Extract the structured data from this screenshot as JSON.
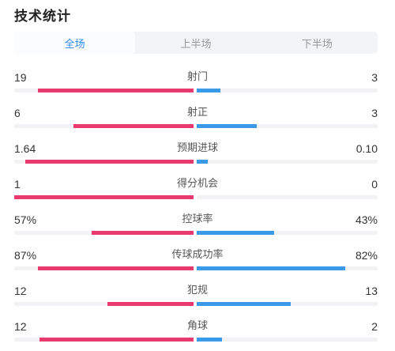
{
  "title": "技术统计",
  "tabs": [
    {
      "label": "全场",
      "active": true
    },
    {
      "label": "上半场",
      "active": false
    },
    {
      "label": "下半场",
      "active": false
    }
  ],
  "colors": {
    "home": "#e83a6e",
    "away": "#3b9ae8",
    "accent": "#2e8bf0"
  },
  "stats": [
    {
      "label": "射门",
      "home": "19",
      "away": "3",
      "home_ratio": 0.87,
      "away_ratio": 0.13
    },
    {
      "label": "射正",
      "home": "6",
      "away": "3",
      "home_ratio": 0.67,
      "away_ratio": 0.33
    },
    {
      "label": "预期进球",
      "home": "1.64",
      "away": "0.10",
      "home_ratio": 0.94,
      "away_ratio": 0.06
    },
    {
      "label": "得分机会",
      "home": "1",
      "away": "0",
      "home_ratio": 1.0,
      "away_ratio": 0.0
    },
    {
      "label": "控球率",
      "home": "57%",
      "away": "43%",
      "home_ratio": 0.57,
      "away_ratio": 0.43
    },
    {
      "label": "传球成功率",
      "home": "87%",
      "away": "82%",
      "home_ratio": 0.87,
      "away_ratio": 0.82
    },
    {
      "label": "犯规",
      "home": "12",
      "away": "13",
      "home_ratio": 0.48,
      "away_ratio": 0.52
    },
    {
      "label": "角球",
      "home": "12",
      "away": "2",
      "home_ratio": 0.86,
      "away_ratio": 0.14
    }
  ]
}
